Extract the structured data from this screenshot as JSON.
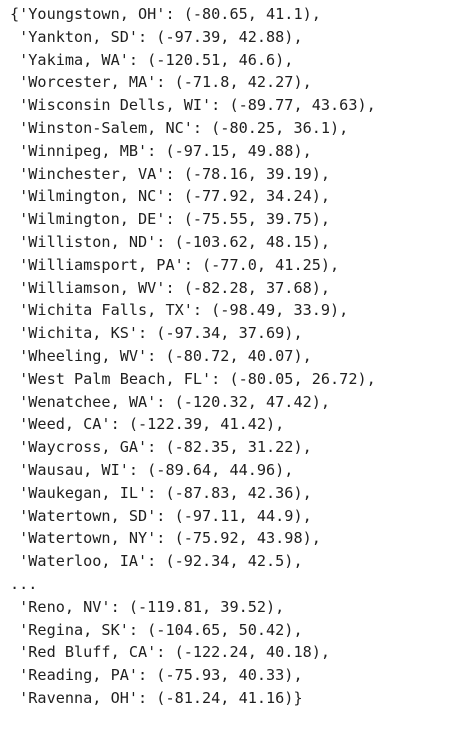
{
  "output": {
    "lines": [
      "{'Youngstown, OH': (-80.65, 41.1),",
      " 'Yankton, SD': (-97.39, 42.88),",
      " 'Yakima, WA': (-120.51, 46.6),",
      " 'Worcester, MA': (-71.8, 42.27),",
      " 'Wisconsin Dells, WI': (-89.77, 43.63),",
      " 'Winston-Salem, NC': (-80.25, 36.1),",
      " 'Winnipeg, MB': (-97.15, 49.88),",
      " 'Winchester, VA': (-78.16, 39.19),",
      " 'Wilmington, NC': (-77.92, 34.24),",
      " 'Wilmington, DE': (-75.55, 39.75),",
      " 'Williston, ND': (-103.62, 48.15),",
      " 'Williamsport, PA': (-77.0, 41.25),",
      " 'Williamson, WV': (-82.28, 37.68),",
      " 'Wichita Falls, TX': (-98.49, 33.9),",
      " 'Wichita, KS': (-97.34, 37.69),",
      " 'Wheeling, WV': (-80.72, 40.07),",
      " 'West Palm Beach, FL': (-80.05, 26.72),",
      " 'Wenatchee, WA': (-120.32, 47.42),",
      " 'Weed, CA': (-122.39, 41.42),",
      " 'Waycross, GA': (-82.35, 31.22),",
      " 'Wausau, WI': (-89.64, 44.96),",
      " 'Waukegan, IL': (-87.83, 42.36),",
      " 'Watertown, SD': (-97.11, 44.9),",
      " 'Watertown, NY': (-75.92, 43.98),",
      " 'Waterloo, IA': (-92.34, 42.5),",
      "...",
      " 'Reno, NV': (-119.81, 39.52),",
      " 'Regina, SK': (-104.65, 50.42),",
      " 'Red Bluff, CA': (-122.24, 40.18),",
      " 'Reading, PA': (-75.93, 40.33),",
      " 'Ravenna, OH': (-81.24, 41.16)}"
    ]
  }
}
